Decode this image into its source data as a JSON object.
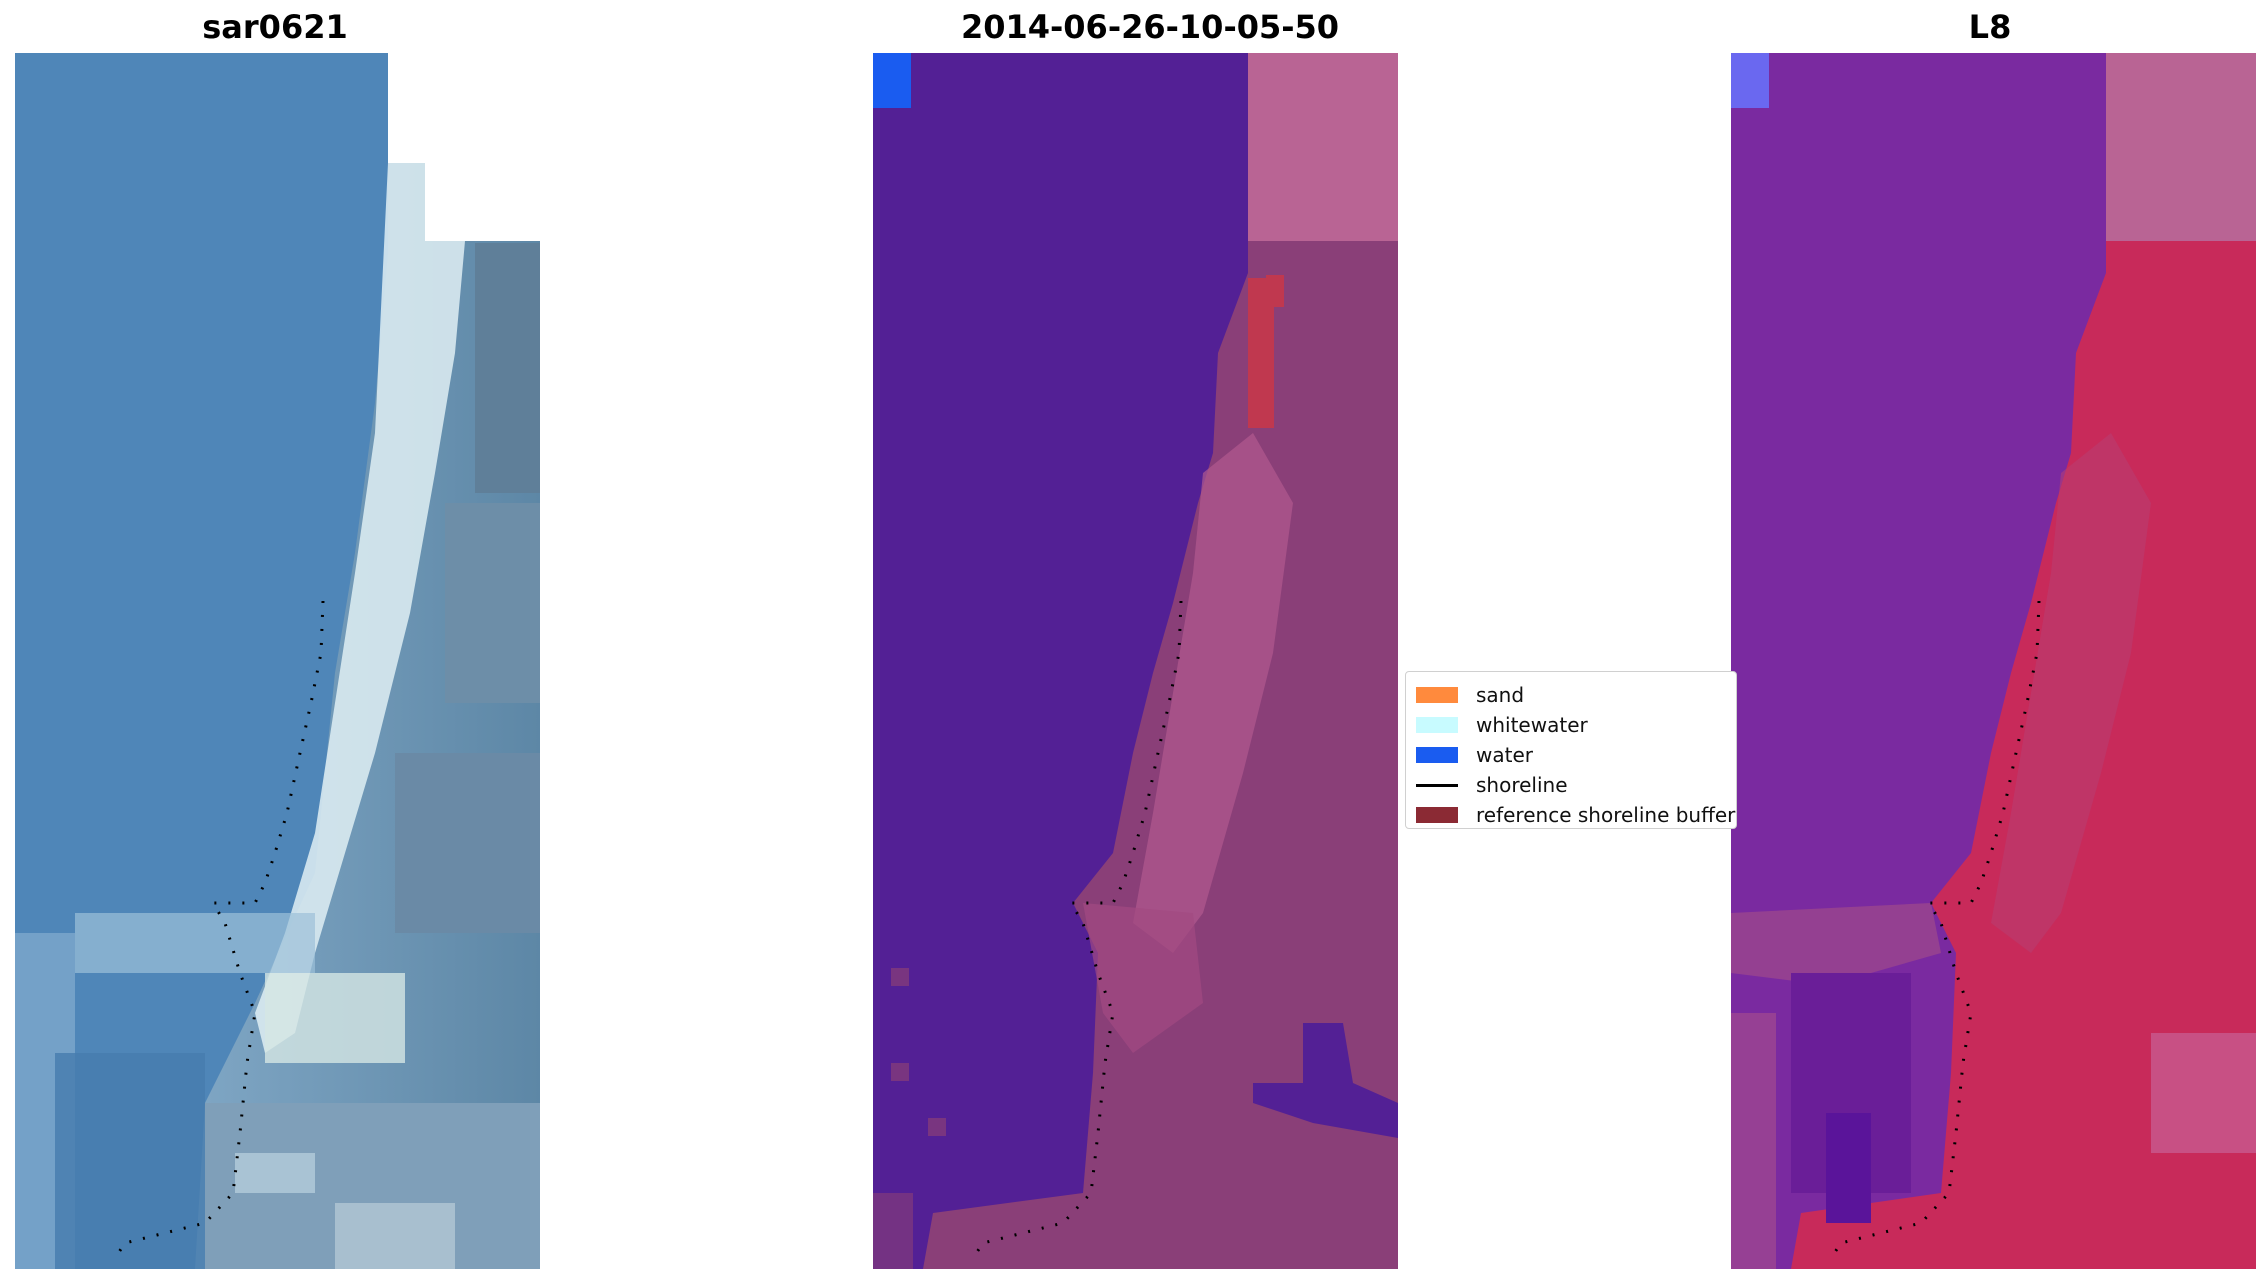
{
  "panels": [
    {
      "title": "sar0621"
    },
    {
      "title": "2014-06-26-10-05-50"
    },
    {
      "title": "L8"
    }
  ],
  "legend": {
    "items": [
      {
        "label": "sand",
        "color": "#ff8a3d",
        "kind": "patch"
      },
      {
        "label": "whitewater",
        "color": "#c8fbff",
        "kind": "patch"
      },
      {
        "label": "water",
        "color": "#1a5cf0",
        "kind": "patch"
      },
      {
        "label": "shoreline",
        "color": "#000000",
        "kind": "line"
      },
      {
        "label": "reference shoreline buffer",
        "color": "#8b2a34",
        "kind": "patch"
      }
    ]
  },
  "colors": {
    "ocean_rgb": "#4f86b8",
    "ocean_classified": "#532095",
    "land_classified": "#8a3f78",
    "land_l8": "#c82a5a",
    "ocean_l8": "#7a2aa0"
  }
}
